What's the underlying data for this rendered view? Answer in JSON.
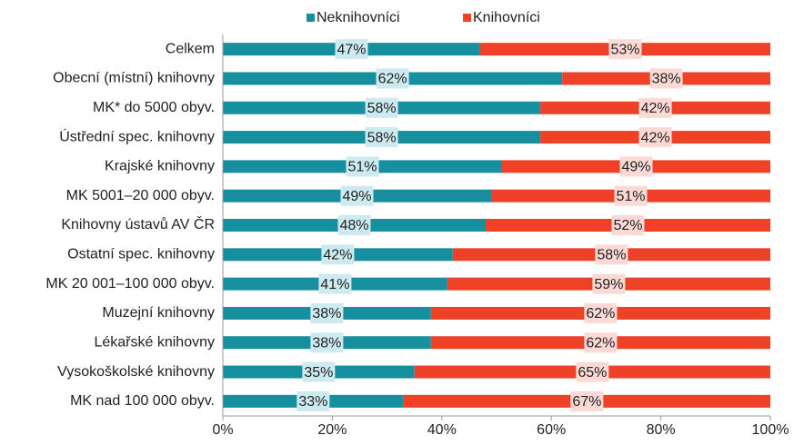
{
  "chart_data": {
    "type": "bar",
    "orientation": "horizontal",
    "stacked": true,
    "categories": [
      "Celkem",
      "Obecní (místní) knihovny",
      "MK* do 5000 obyv.",
      "Ústřední spec. knihovny",
      "Krajské knihovny",
      "MK 5001–20 000 obyv.",
      "Knihovny ústavů AV ČR",
      "Ostatní spec. knihovny",
      "MK 20 001–100 000 obyv.",
      "Muzejní knihovny",
      "Lékařské knihovny",
      "Vysokoškolské knihovny",
      "MK nad 100 000 obyv."
    ],
    "series": [
      {
        "name": "Neknihovníci",
        "color": "#168f9f",
        "label_bg": "#cdeaf0",
        "values": [
          47,
          62,
          58,
          58,
          51,
          49,
          48,
          42,
          41,
          38,
          38,
          35,
          33
        ],
        "value_labels": [
          "47%",
          "62%",
          "58%",
          "58%",
          "51%",
          "49%",
          "48%",
          "42%",
          "41%",
          "38%",
          "38%",
          "35%",
          "33%"
        ]
      },
      {
        "name": "Knihovníci",
        "color": "#ef4128",
        "label_bg": "#fbd9d5",
        "values": [
          53,
          38,
          42,
          42,
          49,
          51,
          52,
          58,
          59,
          62,
          62,
          65,
          67
        ],
        "value_labels": [
          "53%",
          "38%",
          "42%",
          "42%",
          "49%",
          "51%",
          "52%",
          "58%",
          "59%",
          "62%",
          "62%",
          "65%",
          "67%"
        ]
      }
    ],
    "xlim": [
      0,
      100
    ],
    "xticks": [
      {
        "value": 0,
        "label": "0%"
      },
      {
        "value": 20,
        "label": "20%"
      },
      {
        "value": 40,
        "label": "40%"
      },
      {
        "value": 60,
        "label": "60%"
      },
      {
        "value": 80,
        "label": "80%"
      },
      {
        "value": 100,
        "label": "100%"
      }
    ],
    "legend": "top"
  }
}
